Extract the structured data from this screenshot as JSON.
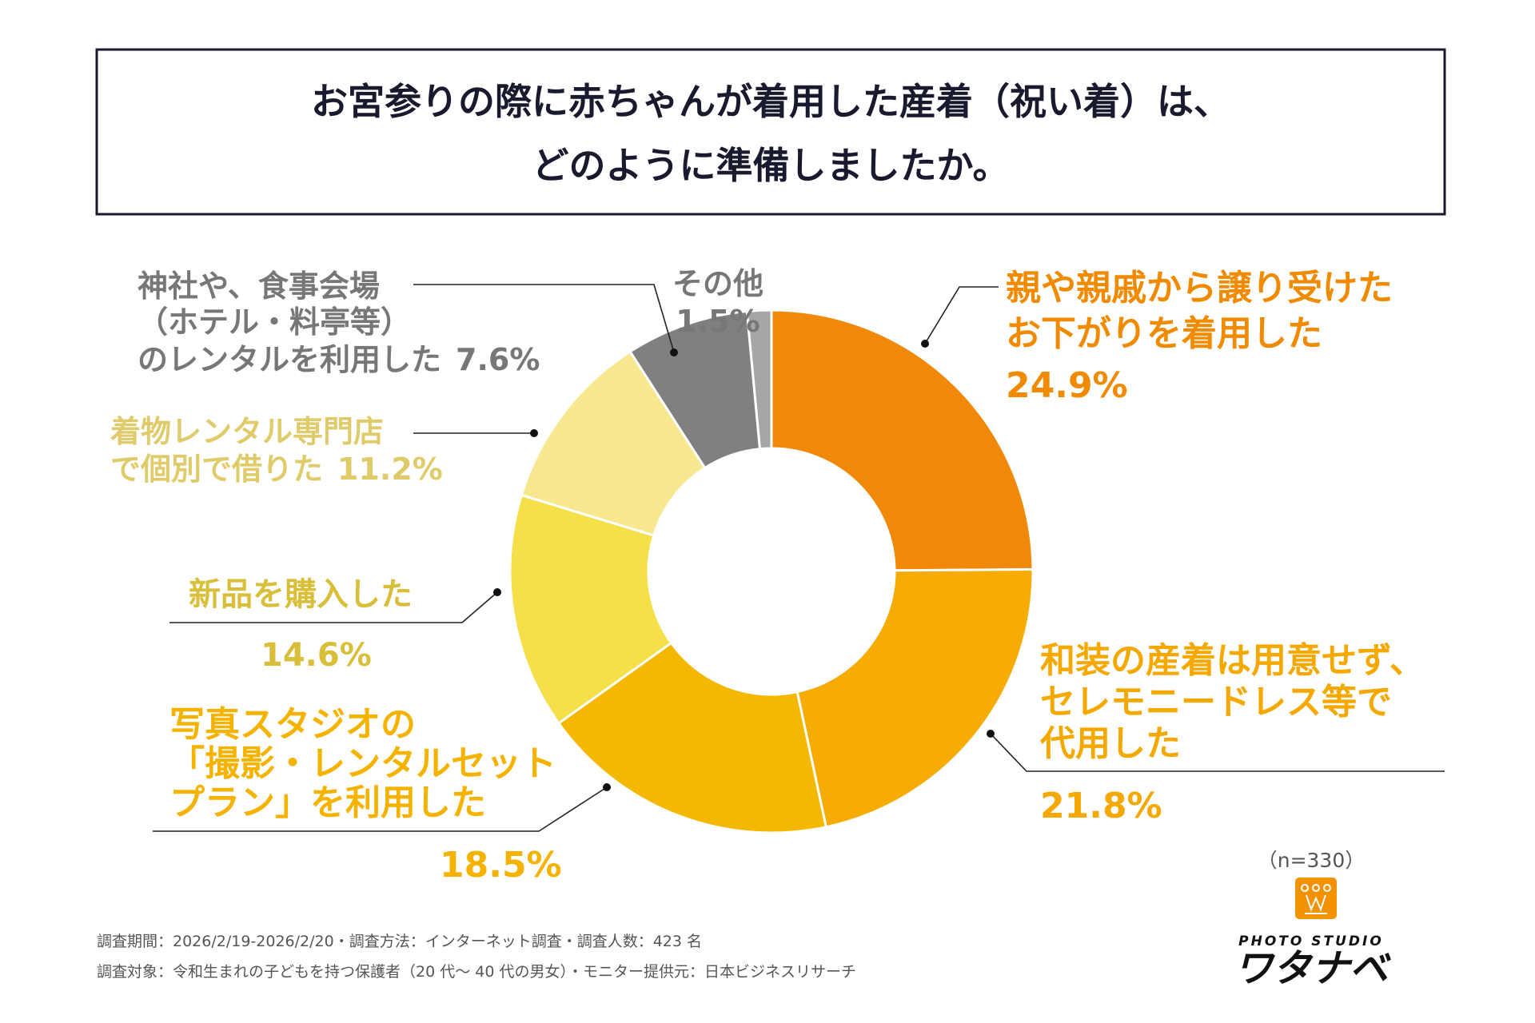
{
  "title": {
    "line1": "お宮参りの際に赤ちゃんが着用した産着（祝い着）は、",
    "line2": "どのように準備しましたか。"
  },
  "chart_data": {
    "type": "pie",
    "style": "donut",
    "slices": [
      {
        "label_lines": [
          "親や親戚から譲り受けた",
          "お下がりを着用した"
        ],
        "value": 24.9,
        "value_label": "24.9%",
        "color": "#F0890A"
      },
      {
        "label_lines": [
          "和装の産着は用意せず、",
          "セレモニードレス等で",
          "代用した"
        ],
        "value": 21.8,
        "value_label": "21.8%",
        "color": "#F7AB05"
      },
      {
        "label_lines": [
          "写真スタジオの",
          "「撮影・レンタルセット",
          "プラン」を利用した"
        ],
        "value": 18.5,
        "value_label": "18.5%",
        "color": "#F5B800"
      },
      {
        "label_lines": [
          "新品を購入した"
        ],
        "value": 14.6,
        "value_label": "14.6%",
        "color": "#F5E04A"
      },
      {
        "label_lines": [
          "着物レンタル専門店",
          "で個別で借りた"
        ],
        "value": 11.2,
        "value_label": "11.2%",
        "color": "#F7E78F"
      },
      {
        "label_lines": [
          "神社や、食事会場",
          "（ホテル・料亭等）",
          "のレンタルを利用した"
        ],
        "value": 7.6,
        "value_label": "7.6%",
        "color": "#808080"
      },
      {
        "label_lines": [
          "その他"
        ],
        "value": 1.5,
        "value_label": "1.5%",
        "color": "#A6A6A6"
      }
    ],
    "label_colors": [
      "#F08A00",
      "#F5A800",
      "#F5B300",
      "#D9BE3A",
      "#E0CB6A",
      "#777777",
      "#777777"
    ],
    "sample_size": "（n=330）"
  },
  "footer": {
    "line1": "調査期間：2026/2/19-2026/2/20・調査方法：インターネット調査・調査人数：423 名",
    "line2": "調査対象：令和生まれの子どもを持つ保護者（20 代〜 40 代の男女）・モニター提供元：日本ビジネスリサーチ"
  },
  "logo": {
    "text_top": "PHOTO STUDIO",
    "text_main": "ワタナベ",
    "color": "#F39200"
  }
}
